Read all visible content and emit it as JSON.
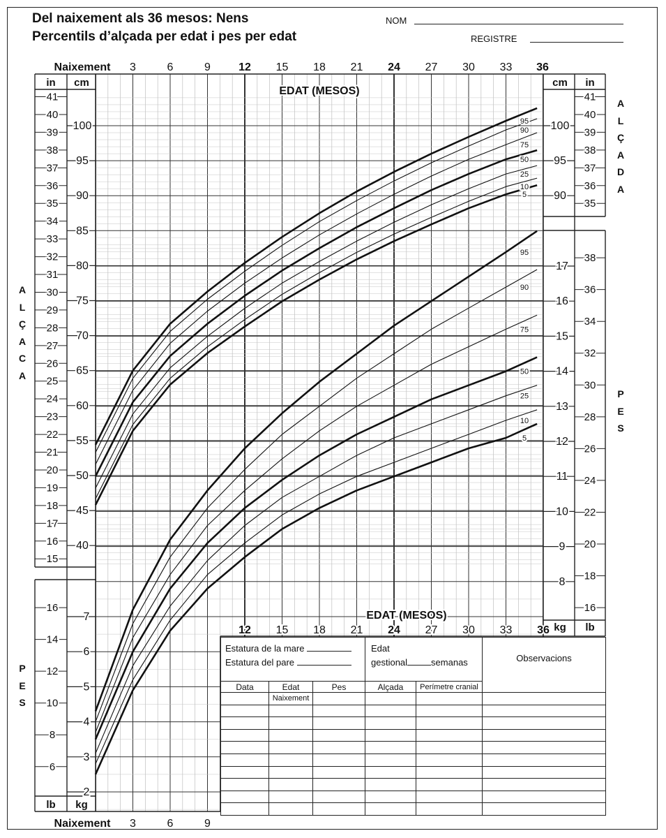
{
  "header": {
    "title_line1": "Del naixement als 36 mesos: Nens",
    "title_line2": "Percentils d’alçada per edat i pes per edat",
    "name_label": "NOM",
    "record_label": "REGISTRE"
  },
  "axis_labels": {
    "top_age_start": "Naixement",
    "bottom_age_start": "Naixement",
    "age_title": "EDAT (MESOS)",
    "age_title_lower": "EDAT (MESOS)",
    "cm": "cm",
    "in": "in",
    "kg": "kg",
    "lb": "lb",
    "side_height_left": [
      "A",
      "L",
      "Ç",
      "A",
      "C",
      "A"
    ],
    "side_height_right": [
      "A",
      "L",
      "Ç",
      "A",
      "D",
      "A"
    ],
    "side_weight": [
      "P",
      "E",
      "S"
    ]
  },
  "record_table": {
    "mother_height": "Estatura de la mare",
    "father_height": "Estatura del pare",
    "gest_label": "Edat",
    "gest_label2": "gestional",
    "gest_unit": "semanas",
    "observations": "Observacions",
    "columns": [
      "Data",
      "Edat",
      "Pes",
      "Alçada",
      "Perímetre cranial"
    ],
    "edat_sub": "Naixement",
    "empty_rows": 10
  },
  "chart_data": {
    "type": "line",
    "title": "Del naixement als 36 mesos: Nens — Percentils d’alçada per edat i pes per edat",
    "xlabel": "EDAT (MESOS)",
    "x_ticks": [
      3,
      6,
      9,
      12,
      15,
      18,
      21,
      24,
      27,
      30,
      33,
      36
    ],
    "bold_x_ticks": [
      12,
      24,
      36
    ],
    "length_for_age": {
      "ylabel": "ALÇADA",
      "units": "cm",
      "ylim": [
        38,
        105
      ],
      "cm_ticks": [
        40,
        45,
        50,
        55,
        60,
        65,
        70,
        75,
        80,
        85,
        90,
        95,
        100
      ],
      "right_cm_ticks": [
        90,
        95,
        100
      ],
      "in_ticks": [
        15,
        16,
        17,
        18,
        19,
        20,
        21,
        22,
        23,
        24,
        25,
        26,
        27,
        28,
        29,
        30,
        31,
        32,
        33,
        34,
        35,
        36,
        37,
        38,
        39,
        40,
        41
      ],
      "right_in_ticks": [
        35,
        36,
        37,
        38,
        39,
        40,
        41
      ],
      "x": [
        0,
        3,
        6,
        9,
        12,
        15,
        18,
        21,
        24,
        27,
        30,
        33,
        35.5
      ],
      "series": [
        {
          "name": "95",
          "bold": true,
          "values": [
            54.4,
            65.0,
            71.7,
            76.3,
            80.4,
            84.1,
            87.5,
            90.6,
            93.4,
            96.0,
            98.4,
            100.7,
            102.5
          ]
        },
        {
          "name": "90",
          "bold": false,
          "values": [
            53.3,
            63.9,
            70.6,
            75.2,
            79.2,
            82.9,
            86.3,
            89.3,
            92.1,
            94.7,
            97.1,
            99.4,
            101.0
          ]
        },
        {
          "name": "75",
          "bold": false,
          "values": [
            51.6,
            62.2,
            68.9,
            73.5,
            77.5,
            81.1,
            84.4,
            87.4,
            90.2,
            92.8,
            95.2,
            97.3,
            99.0
          ]
        },
        {
          "name": "50",
          "bold": true,
          "values": [
            49.9,
            60.5,
            67.1,
            71.7,
            75.7,
            79.3,
            82.5,
            85.5,
            88.2,
            90.8,
            93.1,
            95.2,
            96.5
          ]
        },
        {
          "name": "25",
          "bold": false,
          "values": [
            48.2,
            58.8,
            65.4,
            69.9,
            73.9,
            77.5,
            80.6,
            83.5,
            86.2,
            88.7,
            91.0,
            93.1,
            94.3
          ]
        },
        {
          "name": "10",
          "bold": false,
          "values": [
            46.7,
            57.3,
            63.9,
            68.4,
            72.3,
            75.9,
            79.0,
            81.9,
            84.5,
            86.9,
            89.2,
            91.3,
            92.5
          ]
        },
        {
          "name": "5",
          "bold": true,
          "values": [
            45.8,
            56.4,
            63.0,
            67.5,
            71.3,
            74.9,
            78.0,
            80.9,
            83.5,
            85.9,
            88.2,
            90.2,
            91.5
          ]
        }
      ]
    },
    "weight_for_age": {
      "ylabel": "PES",
      "units": "kg",
      "ylim": [
        1.5,
        17.8
      ],
      "kg_ticks": [
        2,
        3,
        4,
        5,
        6,
        7,
        8,
        9,
        10,
        11,
        12,
        13,
        14,
        15,
        16,
        17
      ],
      "lb_ticks_left": [
        6,
        8,
        10,
        12,
        14,
        16
      ],
      "lb_ticks_right": [
        16,
        18,
        20,
        22,
        24,
        26,
        28,
        30,
        32,
        34,
        36,
        38
      ],
      "x": [
        0,
        3,
        6,
        9,
        12,
        15,
        18,
        21,
        24,
        27,
        30,
        33,
        35.5
      ],
      "series": [
        {
          "name": "95",
          "bold": true,
          "values": [
            4.3,
            7.2,
            9.2,
            10.6,
            11.8,
            12.8,
            13.7,
            14.5,
            15.3,
            16.0,
            16.7,
            17.4,
            18.0
          ]
        },
        {
          "name": "90",
          "bold": false,
          "values": [
            4.0,
            6.8,
            8.7,
            10.1,
            11.2,
            12.2,
            13.0,
            13.8,
            14.5,
            15.2,
            15.8,
            16.4,
            16.9
          ]
        },
        {
          "name": "75",
          "bold": false,
          "values": [
            3.7,
            6.4,
            8.2,
            9.6,
            10.6,
            11.5,
            12.3,
            13.0,
            13.6,
            14.2,
            14.7,
            15.2,
            15.6
          ]
        },
        {
          "name": "50",
          "bold": true,
          "values": [
            3.5,
            6.0,
            7.8,
            9.1,
            10.1,
            10.9,
            11.6,
            12.2,
            12.7,
            13.2,
            13.6,
            14.0,
            14.4
          ]
        },
        {
          "name": "25",
          "bold": false,
          "values": [
            3.1,
            5.6,
            7.3,
            8.6,
            9.6,
            10.4,
            11.0,
            11.6,
            12.1,
            12.5,
            12.9,
            13.3,
            13.6
          ]
        },
        {
          "name": "10",
          "bold": false,
          "values": [
            2.8,
            5.2,
            6.9,
            8.2,
            9.1,
            9.9,
            10.5,
            11.0,
            11.4,
            11.8,
            12.2,
            12.6,
            12.9
          ]
        },
        {
          "name": "5",
          "bold": true,
          "values": [
            2.5,
            4.9,
            6.6,
            7.8,
            8.7,
            9.5,
            10.1,
            10.6,
            11.0,
            11.4,
            11.8,
            12.1,
            12.5
          ]
        }
      ]
    }
  }
}
